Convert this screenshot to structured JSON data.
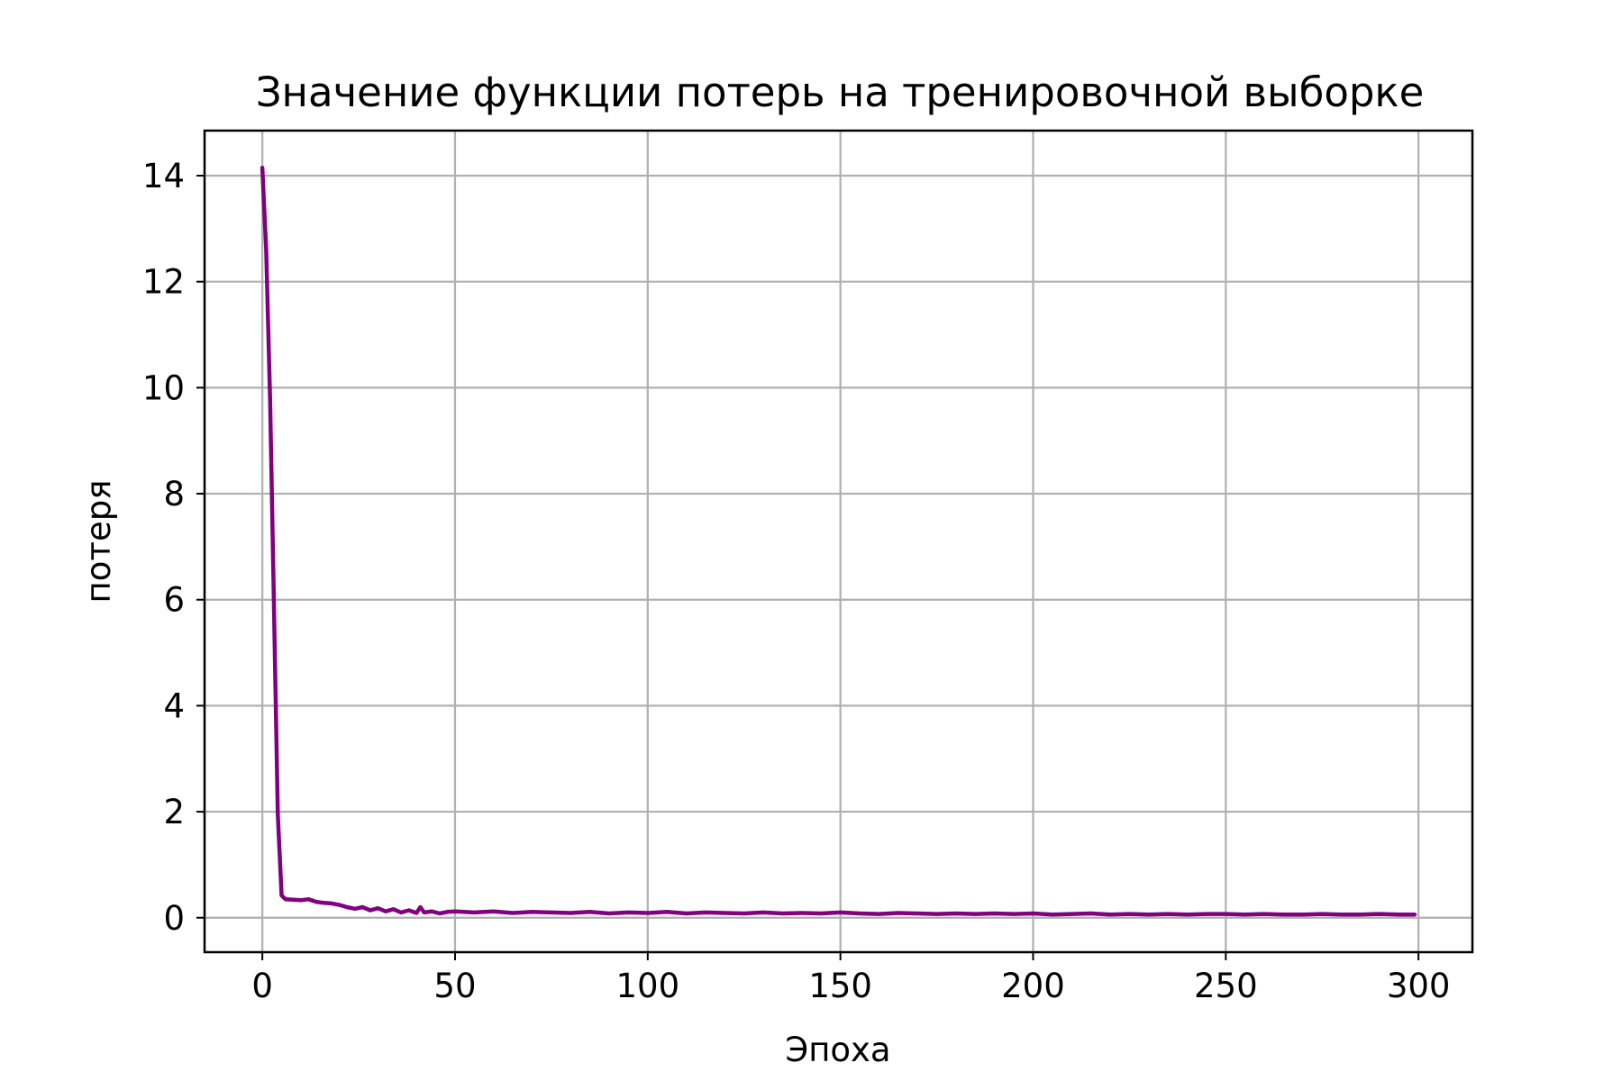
{
  "chart_data": {
    "type": "line",
    "title": "Значение функции потерь на тренировочной выборке",
    "xlabel": "Эпоха",
    "ylabel": "потеря",
    "xlim": [
      -15,
      314
    ],
    "ylim": [
      -0.65,
      14.85
    ],
    "grid": true,
    "x_ticks": [
      0,
      50,
      100,
      150,
      200,
      250,
      300
    ],
    "y_ticks": [
      0,
      2,
      4,
      6,
      8,
      10,
      12,
      14
    ],
    "series": [
      {
        "color": "#800080",
        "x": [
          0,
          1,
          2,
          3,
          4,
          5,
          6,
          8,
          10,
          12,
          14,
          16,
          18,
          20,
          22,
          24,
          26,
          28,
          30,
          32,
          34,
          36,
          38,
          40,
          41,
          42,
          44,
          46,
          48,
          50,
          55,
          60,
          65,
          70,
          75,
          80,
          85,
          90,
          95,
          100,
          105,
          110,
          115,
          120,
          125,
          130,
          135,
          140,
          145,
          150,
          155,
          160,
          165,
          170,
          175,
          180,
          185,
          190,
          195,
          200,
          205,
          210,
          215,
          220,
          225,
          230,
          235,
          240,
          245,
          250,
          255,
          260,
          265,
          270,
          275,
          280,
          285,
          290,
          295,
          299
        ],
        "values": [
          14.15,
          12.6,
          9.8,
          5.9,
          1.95,
          0.42,
          0.35,
          0.34,
          0.33,
          0.35,
          0.3,
          0.28,
          0.27,
          0.24,
          0.2,
          0.17,
          0.2,
          0.14,
          0.18,
          0.12,
          0.16,
          0.1,
          0.14,
          0.09,
          0.2,
          0.1,
          0.12,
          0.08,
          0.11,
          0.12,
          0.1,
          0.12,
          0.09,
          0.11,
          0.1,
          0.09,
          0.11,
          0.08,
          0.1,
          0.09,
          0.11,
          0.08,
          0.1,
          0.09,
          0.08,
          0.1,
          0.08,
          0.09,
          0.08,
          0.1,
          0.08,
          0.07,
          0.09,
          0.08,
          0.07,
          0.08,
          0.07,
          0.08,
          0.07,
          0.08,
          0.06,
          0.07,
          0.08,
          0.06,
          0.07,
          0.06,
          0.07,
          0.06,
          0.07,
          0.07,
          0.06,
          0.07,
          0.06,
          0.06,
          0.07,
          0.06,
          0.06,
          0.07,
          0.06,
          0.06
        ]
      }
    ]
  }
}
